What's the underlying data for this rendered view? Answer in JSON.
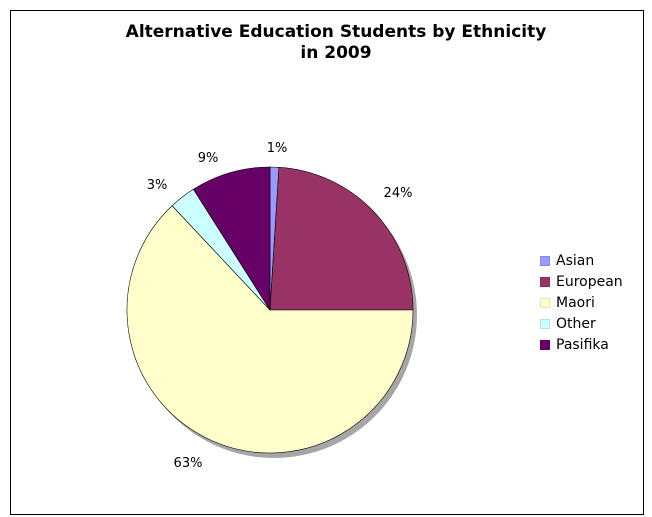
{
  "chart_data": {
    "type": "pie",
    "title_lines": [
      "Alternative Education Students by Ethnicity",
      "in 2009"
    ],
    "categories": [
      "Asian",
      "European",
      "Maori",
      "Other",
      "Pasifika"
    ],
    "values": [
      1,
      24,
      63,
      3,
      9
    ],
    "labels": [
      "1%",
      "24%",
      "63%",
      "3%",
      "9%"
    ],
    "colors": [
      "#9999FF",
      "#993366",
      "#FFFFCC",
      "#CCFFFF",
      "#660066"
    ],
    "legend_position": "right"
  }
}
